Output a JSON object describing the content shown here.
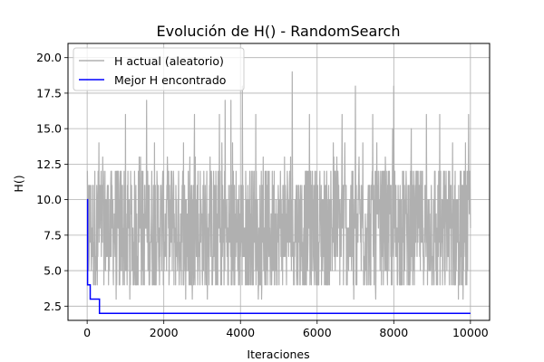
{
  "chart_data": {
    "type": "line",
    "title": "Evolución de H() - RandomSearch",
    "xlabel": "Iteraciones",
    "ylabel": "H()",
    "xlim": [
      -500,
      10500
    ],
    "ylim": [
      1.5,
      21.0
    ],
    "x_ticks": [
      0,
      2000,
      4000,
      6000,
      8000,
      10000
    ],
    "x_tick_labels": [
      "0",
      "2000",
      "4000",
      "6000",
      "8000",
      "10000"
    ],
    "y_ticks": [
      2.5,
      5.0,
      7.5,
      10.0,
      12.5,
      15.0,
      17.5,
      20.0
    ],
    "y_tick_labels": [
      "2.5",
      "5.0",
      "7.5",
      "10.0",
      "12.5",
      "15.0",
      "17.5",
      "20.0"
    ],
    "grid": true,
    "legend_position": "top-left",
    "series": [
      {
        "name": "H actual (aleatorio)",
        "color": "#b0b0b0",
        "n_points": 10000,
        "typical_range": [
          4,
          12
        ],
        "min": 2,
        "max": 19,
        "spikes": [
          {
            "x": 5350,
            "y": 19
          },
          {
            "x": 7000,
            "y": 18
          },
          {
            "x": 8000,
            "y": 18
          },
          {
            "x": 4050,
            "y": 18
          },
          {
            "x": 3600,
            "y": 17
          },
          {
            "x": 1550,
            "y": 17
          },
          {
            "x": 9950,
            "y": 16
          },
          {
            "x": 9200,
            "y": 16
          },
          {
            "x": 3750,
            "y": 17
          },
          {
            "x": 5800,
            "y": 16
          },
          {
            "x": 1000,
            "y": 16
          },
          {
            "x": 2800,
            "y": 16
          },
          {
            "x": 7450,
            "y": 16
          },
          {
            "x": 8850,
            "y": 16
          },
          {
            "x": 6650,
            "y": 16
          },
          {
            "x": 3450,
            "y": 16
          },
          {
            "x": 4400,
            "y": 16
          }
        ]
      },
      {
        "name": "Mejor H encontrado",
        "color": "#0000ff",
        "x": [
          0,
          10,
          10,
          80,
          80,
          320,
          320,
          10000
        ],
        "y": [
          10,
          10,
          4,
          4,
          3,
          3,
          2,
          2
        ]
      }
    ]
  }
}
